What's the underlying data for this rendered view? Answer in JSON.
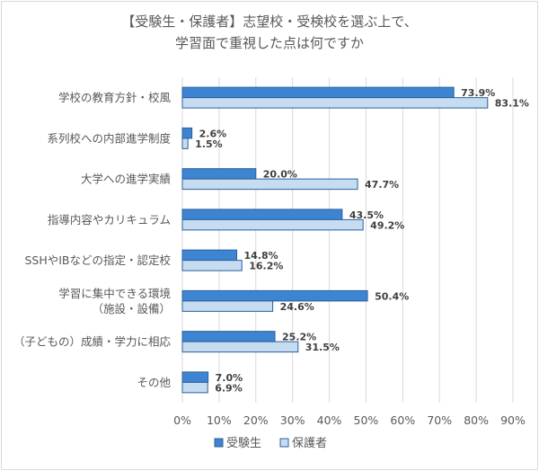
{
  "chart_data": {
    "type": "bar",
    "orientation": "horizontal",
    "title_lines": [
      "【受験生・保護者】志望校・受検校を選ぶ上で、",
      "学習面で重視した点は何ですか"
    ],
    "categories": [
      [
        "学校の教育方針・校風"
      ],
      [
        "系列校への内部進学制度"
      ],
      [
        "大学への進学実績"
      ],
      [
        "指導内容やカリキュラム"
      ],
      [
        "SSHやIBなどの指定・認定校"
      ],
      [
        "学習に集中できる環境",
        "（施設・設備）"
      ],
      [
        "（子どもの）成績・学力に相応"
      ],
      [
        "その他"
      ]
    ],
    "series": [
      {
        "name": "受験生",
        "color": "#3d85d2",
        "values": [
          73.9,
          2.6,
          20.0,
          43.5,
          14.8,
          50.4,
          25.2,
          7.0
        ],
        "labels": [
          "73.9%",
          "2.6%",
          "20.0%",
          "43.5%",
          "14.8%",
          "50.4%",
          "25.2%",
          "7.0%"
        ]
      },
      {
        "name": "保護者",
        "color": "#c5dcf1",
        "values": [
          83.1,
          1.5,
          47.7,
          49.2,
          16.2,
          24.6,
          31.5,
          6.9
        ],
        "labels": [
          "83.1%",
          "1.5%",
          "47.7%",
          "49.2%",
          "16.2%",
          "24.6%",
          "31.5%",
          "6.9%"
        ]
      }
    ],
    "xlim": [
      0,
      90
    ],
    "x_ticks": [
      0,
      10,
      20,
      30,
      40,
      50,
      60,
      70,
      80,
      90
    ],
    "x_tick_labels": [
      "0%",
      "10%",
      "20%",
      "30%",
      "40%",
      "50%",
      "60%",
      "70%",
      "80%",
      "90%"
    ],
    "grid": true,
    "legend_position": "bottom",
    "colors": {
      "border": "#2f5f96",
      "grid": "#d9d9d9",
      "text": "#595959",
      "label": "#404040"
    }
  }
}
